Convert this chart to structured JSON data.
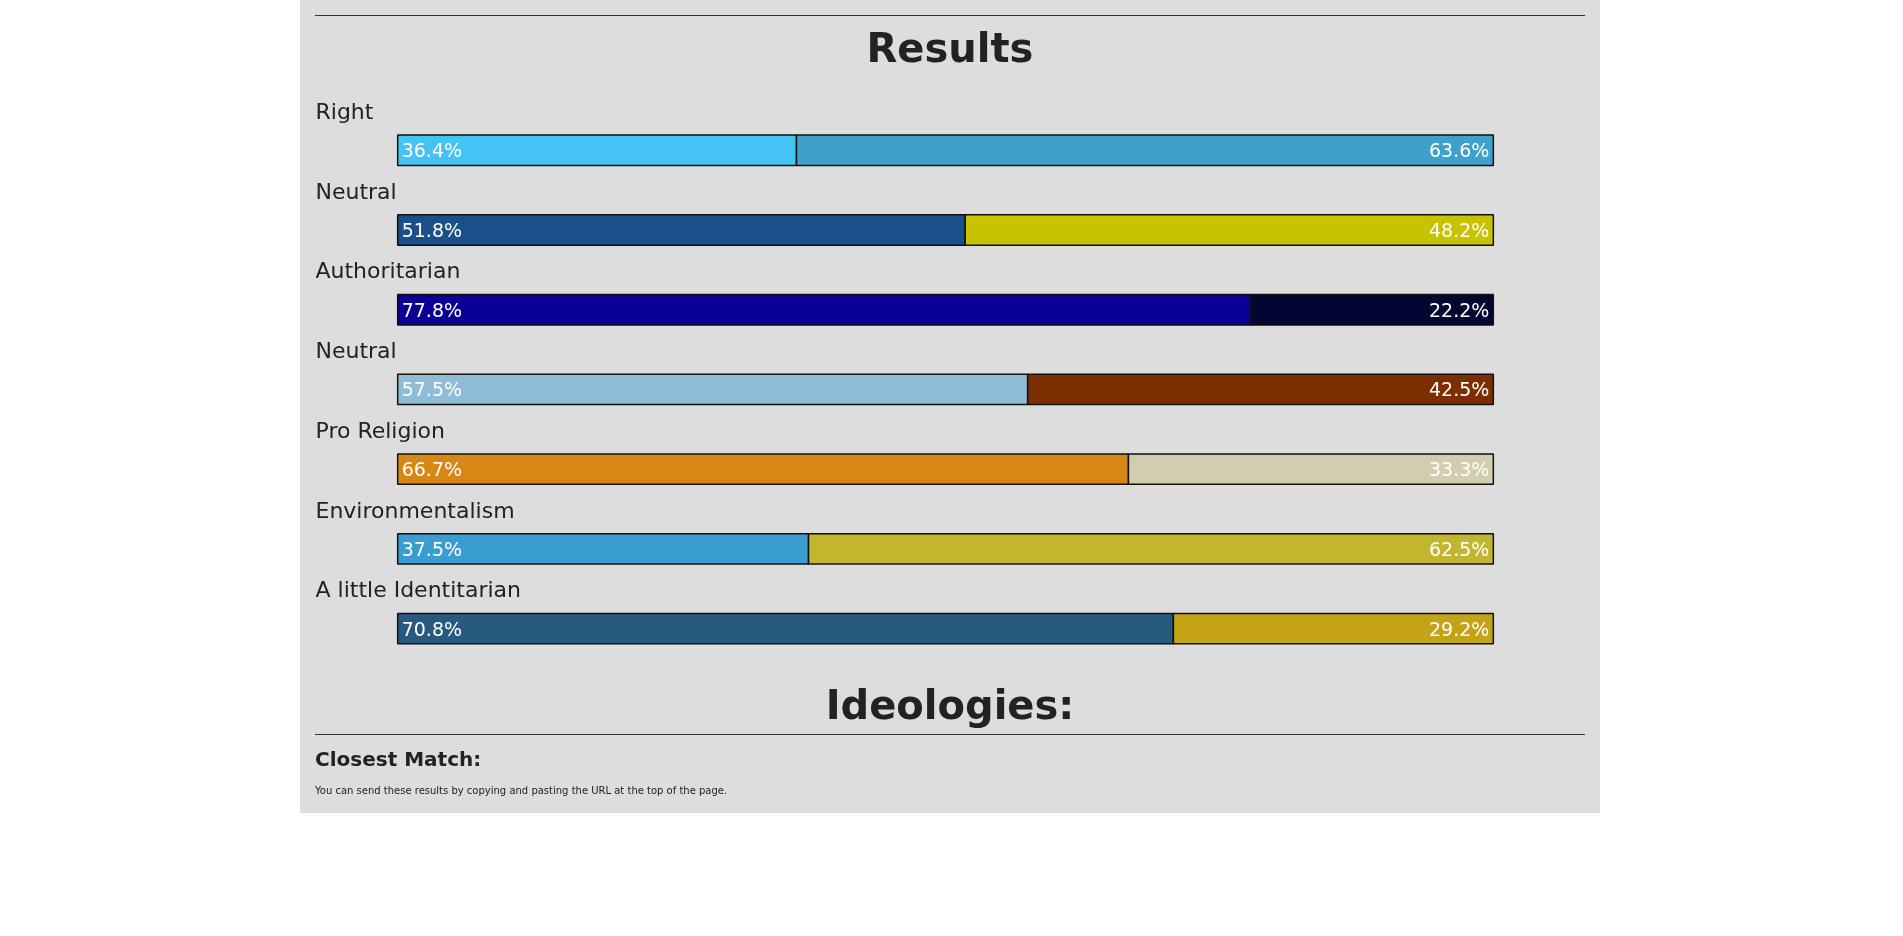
{
  "chart_data": {
    "type": "bar",
    "orientation": "horizontal",
    "stacked": true,
    "title": "Results",
    "categories": [
      "Right",
      "Neutral",
      "Authoritarian",
      "Neutral",
      "Pro Religion",
      "Environmentalism",
      "A little Identitarian"
    ],
    "series": [
      {
        "values": [
          36.4,
          51.8,
          77.8,
          57.5,
          66.7,
          37.5,
          70.8
        ],
        "value_labels": [
          "36.4%",
          "51.8%",
          "77.8%",
          "57.5%",
          "66.7%",
          "37.5%",
          "70.8%"
        ],
        "colors": [
          "#45c3f5",
          "#19508a",
          "#0a0096",
          "#8fbcd6",
          "#d68716",
          "#3a9dd2",
          "#285a80"
        ]
      },
      {
        "values": [
          63.6,
          48.2,
          22.2,
          42.5,
          33.3,
          62.5,
          29.2
        ],
        "value_labels": [
          "63.6%",
          "48.2%",
          "22.2%",
          "42.5%",
          "33.3%",
          "62.5%",
          "29.2%"
        ],
        "colors": [
          "#3ea1cc",
          "#c8c200",
          "#020631",
          "#7d2e00",
          "#d1cdae",
          "#c4b52f",
          "#c4a317"
        ]
      }
    ],
    "tick_labels": "y",
    "grid": false,
    "annotations": [
      "Ideologies:",
      "Closest Match:",
      "You can send these results by copying and pasting the URL at the top of the page."
    ]
  }
}
